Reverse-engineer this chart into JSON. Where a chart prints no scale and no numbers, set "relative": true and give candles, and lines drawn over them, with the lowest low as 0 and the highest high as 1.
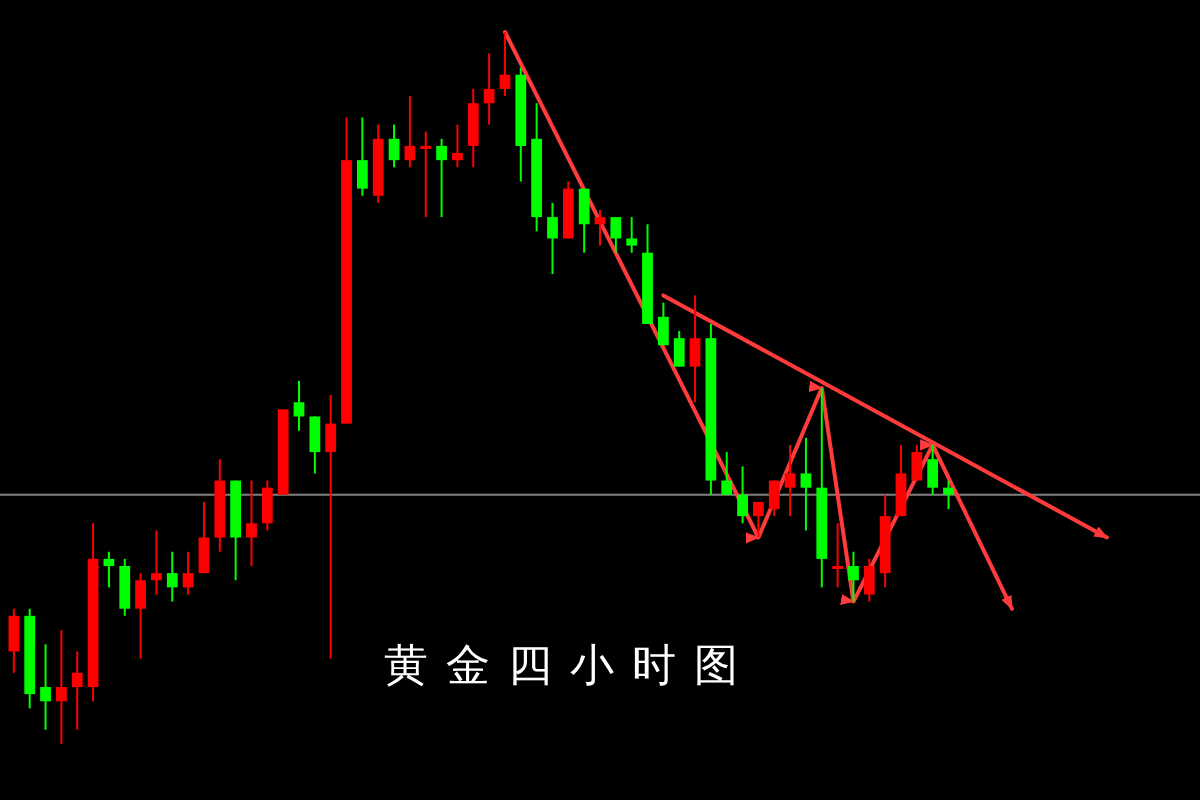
{
  "chart_data": {
    "type": "candlestick",
    "relative": true,
    "title": "黄金四小时图",
    "categories": [
      null,
      null,
      null,
      null,
      null,
      null,
      null,
      null,
      null,
      null,
      null,
      null,
      null,
      null,
      null,
      null,
      null,
      null,
      null,
      null,
      null,
      null,
      null,
      null,
      null,
      null,
      null,
      null,
      null,
      null,
      null,
      null,
      null,
      null,
      null,
      null,
      null,
      null,
      null,
      null,
      null,
      null,
      null,
      null,
      null,
      null,
      null,
      null,
      null,
      null,
      null,
      null,
      null,
      null,
      null,
      null,
      null,
      null,
      null,
      null,
      null,
      null,
      null,
      null,
      null,
      null,
      null,
      null,
      null,
      null,
      null,
      null,
      null,
      null,
      null
    ],
    "ohlc": [
      [
        0.13,
        0.19,
        0.1,
        0.18
      ],
      [
        0.18,
        0.19,
        0.05,
        0.07
      ],
      [
        0.08,
        0.14,
        0.02,
        0.06
      ],
      [
        0.06,
        0.16,
        0,
        0.08
      ],
      [
        0.08,
        0.13,
        0.02,
        0.1
      ],
      [
        0.08,
        0.31,
        0.06,
        0.26
      ],
      [
        0.26,
        0.27,
        0.22,
        0.25
      ],
      [
        0.25,
        0.26,
        0.18,
        0.19
      ],
      [
        0.19,
        0.24,
        0.12,
        0.23
      ],
      [
        0.23,
        0.3,
        0.21,
        0.24
      ],
      [
        0.24,
        0.27,
        0.2,
        0.22
      ],
      [
        0.22,
        0.27,
        0.21,
        0.24
      ],
      [
        0.24,
        0.34,
        0.24,
        0.29
      ],
      [
        0.29,
        0.4,
        0.27,
        0.37
      ],
      [
        0.37,
        0.37,
        0.23,
        0.29
      ],
      [
        0.29,
        0.37,
        0.25,
        0.31
      ],
      [
        0.31,
        0.37,
        0.3,
        0.36
      ],
      [
        0.35,
        0.47,
        0.35,
        0.47
      ],
      [
        0.48,
        0.51,
        0.44,
        0.46
      ],
      [
        0.46,
        0.46,
        0.38,
        0.41
      ],
      [
        0.41,
        0.49,
        0.12,
        0.45
      ],
      [
        0.45,
        0.88,
        0.45,
        0.82
      ],
      [
        0.82,
        0.88,
        0.77,
        0.78
      ],
      [
        0.77,
        0.87,
        0.76,
        0.85
      ],
      [
        0.85,
        0.87,
        0.81,
        0.82
      ],
      [
        0.82,
        0.91,
        0.81,
        0.84
      ],
      [
        0.84,
        0.86,
        0.74,
        0.84
      ],
      [
        0.84,
        0.85,
        0.74,
        0.82
      ],
      [
        0.82,
        0.87,
        0.81,
        0.83
      ],
      [
        0.84,
        0.92,
        0.81,
        0.9
      ],
      [
        0.9,
        0.97,
        0.87,
        0.92
      ],
      [
        0.92,
        1,
        0.91,
        0.94
      ],
      [
        0.94,
        0.95,
        0.79,
        0.84
      ],
      [
        0.85,
        0.9,
        0.72,
        0.74
      ],
      [
        0.74,
        0.76,
        0.66,
        0.71
      ],
      [
        0.71,
        0.79,
        0.71,
        0.78
      ],
      [
        0.78,
        0.78,
        0.69,
        0.73
      ],
      [
        0.73,
        0.75,
        0.7,
        0.74
      ],
      [
        0.74,
        0.74,
        0.69,
        0.71
      ],
      [
        0.71,
        0.74,
        0.69,
        0.7
      ],
      [
        0.69,
        0.73,
        0.59,
        0.59
      ],
      [
        0.6,
        0.62,
        0.56,
        0.56
      ],
      [
        0.57,
        0.58,
        0.53,
        0.53
      ],
      [
        0.53,
        0.63,
        0.48,
        0.57
      ],
      [
        0.57,
        0.59,
        0.35,
        0.37
      ],
      [
        0.37,
        0.41,
        0.35,
        0.35
      ],
      [
        0.35,
        0.39,
        0.31,
        0.32
      ],
      [
        0.32,
        0.34,
        0.29,
        0.34
      ],
      [
        0.33,
        0.37,
        0.32,
        0.37
      ],
      [
        0.36,
        0.42,
        0.32,
        0.38
      ],
      [
        0.38,
        0.43,
        0.3,
        0.36
      ],
      [
        0.36,
        0.5,
        0.22,
        0.26
      ],
      [
        0.25,
        0.31,
        0.22,
        0.25
      ],
      [
        0.25,
        0.27,
        0.2,
        0.23
      ],
      [
        0.21,
        0.26,
        0.2,
        0.25
      ],
      [
        0.24,
        0.35,
        0.22,
        0.32
      ],
      [
        0.32,
        0.42,
        0.32,
        0.38
      ],
      [
        0.37,
        0.42,
        0.37,
        0.41
      ],
      [
        0.4,
        0.42,
        0.35,
        0.36
      ],
      [
        0.36,
        0.37,
        0.33,
        0.35
      ],
      null,
      null,
      null,
      null,
      null,
      null,
      null,
      null,
      null,
      null,
      null,
      null,
      null,
      null,
      null
    ],
    "colors": [
      "#ff0000",
      "#00ff00",
      "#00ff00",
      "#ff0000",
      "#ff0000",
      "#ff0000",
      "#00ff00",
      "#00ff00",
      "#ff0000",
      "#ff0000",
      "#00ff00",
      "#ff0000",
      "#ff0000",
      "#ff0000",
      "#00ff00",
      "#ff0000",
      "#ff0000",
      "#ff0000",
      "#00ff00",
      "#00ff00",
      "#ff0000",
      "#ff0000",
      "#00ff00",
      "#ff0000",
      "#00ff00",
      "#ff0000",
      "#ff0000",
      "#00ff00",
      "#ff0000",
      "#ff0000",
      "#ff0000",
      "#ff0000",
      "#00ff00",
      "#00ff00",
      "#00ff00",
      "#ff0000",
      "#00ff00",
      "#ff0000",
      "#00ff00",
      "#00ff00",
      "#00ff00",
      "#00ff00",
      "#00ff00",
      "#ff0000",
      "#00ff00",
      "#00ff00",
      "#00ff00",
      "#ff0000",
      "#ff0000",
      "#ff0000",
      "#00ff00",
      "#00ff00",
      "#ff0000",
      "#00ff00",
      "#ff0000",
      "#ff0000",
      "#ff0000",
      "#ff0000",
      "#00ff00",
      "#00ff00",
      null,
      null,
      null,
      null,
      null,
      null,
      null,
      null,
      null,
      null,
      null,
      null,
      null,
      null,
      null
    ],
    "series": [
      {
        "type": "line",
        "color": "#ff3b3b",
        "values": [
          null,
          null,
          null,
          null,
          null,
          null,
          null,
          null,
          null,
          null,
          null,
          null,
          null,
          null,
          null,
          null,
          null,
          null,
          null,
          null,
          null,
          null,
          null,
          null,
          null,
          null,
          null,
          null,
          null,
          null,
          null,
          1,
          null,
          null,
          null,
          null,
          null,
          null,
          null,
          null,
          null,
          null,
          null,
          null,
          null,
          null,
          null,
          0.29,
          null,
          null,
          null,
          0.5,
          null,
          0.2,
          null,
          null,
          null,
          null,
          0.42,
          null,
          null,
          null,
          null,
          0.19,
          null,
          null,
          null,
          null,
          null,
          null,
          null,
          null,
          null,
          null,
          null
        ]
      },
      {
        "type": "line",
        "color": "#ff3b3b",
        "values": [
          null,
          null,
          null,
          null,
          null,
          null,
          null,
          null,
          null,
          null,
          null,
          null,
          null,
          null,
          null,
          null,
          null,
          null,
          null,
          null,
          null,
          null,
          null,
          null,
          null,
          null,
          null,
          null,
          null,
          null,
          null,
          null,
          null,
          null,
          null,
          null,
          null,
          null,
          null,
          null,
          null,
          0.63,
          null,
          null,
          null,
          null,
          null,
          null,
          null,
          null,
          null,
          null,
          null,
          null,
          null,
          null,
          null,
          null,
          null,
          null,
          null,
          null,
          null,
          null,
          null,
          null,
          null,
          null,
          null,
          0.29,
          null,
          null,
          null,
          null,
          null
        ]
      }
    ],
    "ref_lines": [
      {
        "axis": "y",
        "value": 0.35,
        "color": "#808080"
      }
    ]
  }
}
